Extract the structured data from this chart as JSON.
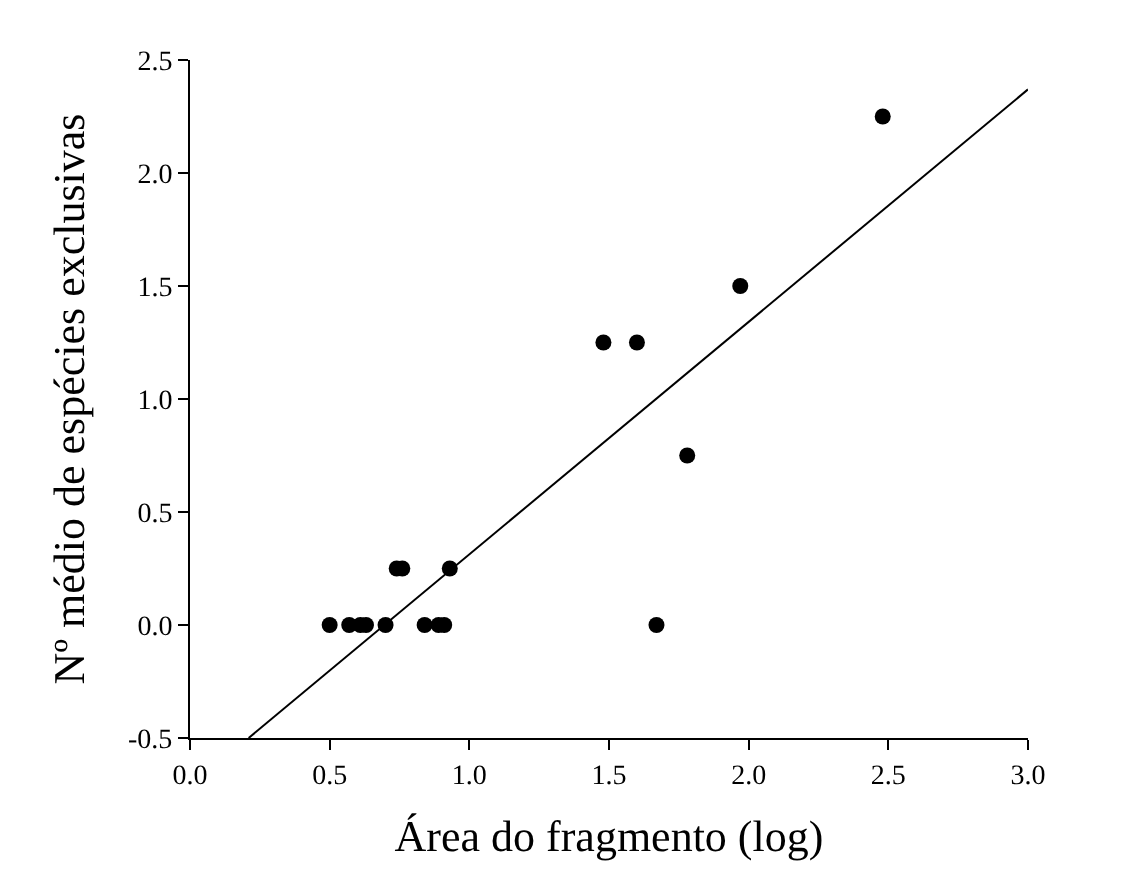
{
  "chart_data": {
    "type": "scatter",
    "xlabel": "Área do fragmento (log)",
    "ylabel": "Nº médio de espécies exclusivas",
    "series": [
      {
        "color": "#000000",
        "marker": "circle",
        "x": [
          0.5,
          0.57,
          0.61,
          0.63,
          0.7,
          0.84,
          0.89,
          0.91,
          0.74,
          0.76,
          0.93,
          1.48,
          1.6,
          1.67,
          1.78,
          1.97,
          2.48
        ],
        "values": [
          0,
          0,
          0,
          0,
          0,
          0,
          0,
          0,
          0.25,
          0.25,
          0.25,
          1.25,
          1.25,
          0,
          0.75,
          1.5,
          2.25
        ]
      },
      {
        "type": "line",
        "color": "#000000",
        "marker": "none",
        "x": [
          0.21,
          3.0
        ],
        "values": [
          -0.5,
          2.37
        ]
      }
    ],
    "xlim": [
      0,
      3
    ],
    "xticks": [
      {
        "value": 0,
        "label": "0.0"
      },
      {
        "value": 0.5,
        "label": "0.5"
      },
      {
        "value": 1,
        "label": "1.0"
      },
      {
        "value": 1.5,
        "label": "1.5"
      },
      {
        "value": 2,
        "label": "2.0"
      },
      {
        "value": 2.5,
        "label": "2.5"
      },
      {
        "value": 3,
        "label": "3.0"
      }
    ],
    "ylim": [
      -0.5,
      2.5
    ],
    "yticks": [
      {
        "value": -0.5,
        "label": "-0.5"
      },
      {
        "value": 0,
        "label": "0.0"
      },
      {
        "value": 0.5,
        "label": "0.5"
      },
      {
        "value": 1,
        "label": "1.0"
      },
      {
        "value": 1.5,
        "label": "1.5"
      },
      {
        "value": 2,
        "label": "2.0"
      },
      {
        "value": 2.5,
        "label": "2.5"
      }
    ],
    "grid": false
  }
}
